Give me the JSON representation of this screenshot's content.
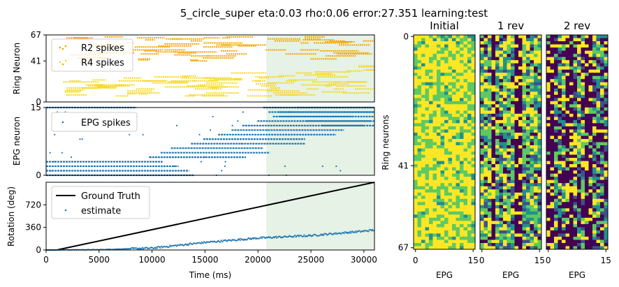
{
  "figure": {
    "suptitle": "5_circle_super eta:0.03 rho:0.06 error:27.351 learning:test"
  },
  "colors": {
    "r2": "#f5a300",
    "r4": "#f6d81d",
    "epg": "#1f77b4",
    "truth": "#000000",
    "shade": "#e5f2e5",
    "viridis": [
      "#440154",
      "#3b528b",
      "#21918c",
      "#5ec962",
      "#fde725"
    ]
  },
  "chart_data": [
    {
      "type": "scatter",
      "panel": "ring",
      "ylabel": "Ring Neuron",
      "xlim": [
        0,
        31000
      ],
      "ylim": [
        0,
        67
      ],
      "yticks": [
        "0",
        "41",
        "67"
      ],
      "shaded_x": [
        20800,
        31000
      ],
      "legend": [
        "R2 spikes",
        "R4 spikes"
      ],
      "legend_position": "upper-left",
      "series": [
        {
          "name": "R2 spikes",
          "neurons": [
            41,
            67
          ]
        },
        {
          "name": "R4 spikes",
          "neurons": [
            0,
            41
          ]
        }
      ]
    },
    {
      "type": "scatter",
      "panel": "epg",
      "ylabel": "EPG neuron",
      "xlim": [
        0,
        31000
      ],
      "ylim": [
        0,
        15
      ],
      "yticks": [
        "0",
        "15"
      ],
      "shaded_x": [
        20800,
        31000
      ],
      "legend": [
        "EPG spikes"
      ],
      "legend_position": "upper-left"
    },
    {
      "type": "line",
      "panel": "rotation",
      "xlabel": "Time (ms)",
      "ylabel": "Rotation (deg)",
      "xlim": [
        0,
        31000
      ],
      "ylim": [
        0,
        1080
      ],
      "xticks": [
        "0",
        "5000",
        "10000",
        "15000",
        "20000",
        "25000",
        "30000"
      ],
      "yticks": [
        "0",
        "360",
        "720"
      ],
      "shaded_x": [
        20800,
        31000
      ],
      "legend": [
        "Ground Truth",
        "estimate"
      ],
      "legend_position": "upper-left",
      "series": [
        {
          "name": "Ground Truth",
          "x": [
            1000,
            31000
          ],
          "y": [
            0,
            1080
          ]
        },
        {
          "name": "estimate",
          "x": [
            0,
            5000,
            10000,
            15000,
            20000,
            25000,
            30000,
            31000
          ],
          "y": [
            0,
            5,
            30,
            120,
            190,
            230,
            300,
            320
          ]
        }
      ]
    },
    {
      "type": "heatmap",
      "title": "Initial",
      "xlabel": "EPG",
      "ylabel": "Ring neurons",
      "rows": 68,
      "cols": 16,
      "xticks": [
        "0",
        "15"
      ],
      "yticks": [
        "0",
        "41",
        "67"
      ]
    },
    {
      "type": "heatmap",
      "title": "1 rev",
      "xlabel": "EPG",
      "rows": 68,
      "cols": 16,
      "xticks": [
        "0",
        "15"
      ]
    },
    {
      "type": "heatmap",
      "title": "2 rev",
      "xlabel": "EPG",
      "rows": 68,
      "cols": 16,
      "xticks": [
        "0",
        "15"
      ]
    }
  ]
}
